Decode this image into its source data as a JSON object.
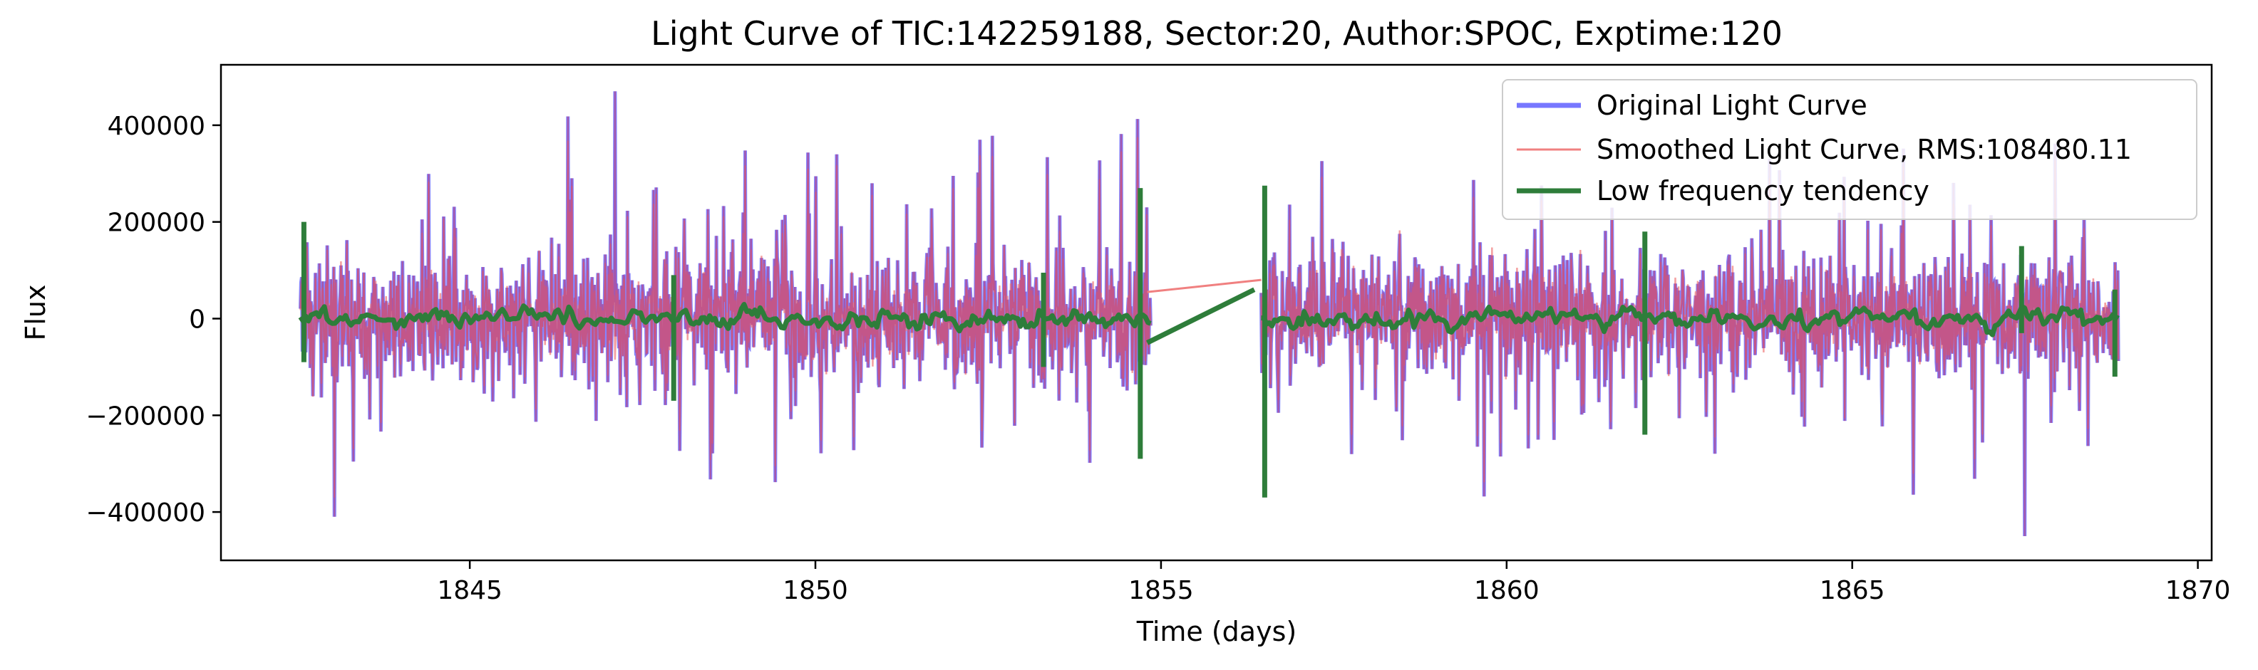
{
  "chart_data": {
    "type": "line",
    "title": "Light Curve of TIC:142259188, Sector:20, Author:SPOC, Exptime:120",
    "xlabel": "Time (days)",
    "ylabel": "Flux",
    "xlim": [
      1841.4,
      1870.2
    ],
    "ylim": [
      -500000,
      525000
    ],
    "xticks": [
      1845,
      1850,
      1855,
      1860,
      1865,
      1870
    ],
    "xtick_labels": [
      "1845",
      "1850",
      "1855",
      "1860",
      "1865",
      "1870"
    ],
    "yticks": [
      -400000,
      -200000,
      0,
      200000,
      400000
    ],
    "ytick_labels": [
      "−400000",
      "−200000",
      "0",
      "200000",
      "400000"
    ],
    "grid": false,
    "legend_position": "top-right",
    "segments": [
      [
        1842.55,
        1854.85
      ],
      [
        1856.45,
        1868.85
      ]
    ],
    "series": [
      {
        "name": "Original Light Curve",
        "color": "#7777ff",
        "amplitude_typical": 200000,
        "y_extremes": {
          "max": 470000,
          "min": -450000
        }
      },
      {
        "name": "Smoothed Light Curve, RMS:108480.11",
        "color": "#f08080",
        "rms": 108480.11,
        "gap_bridge": {
          "x": [
            1854.8,
            1856.45
          ],
          "y": [
            55000,
            80000
          ]
        }
      },
      {
        "name": "Low frequency tendency",
        "color": "#2e7d3a",
        "baseline_range": [
          -40000,
          40000
        ],
        "gap_bridge": {
          "x": [
            1854.8,
            1856.35
          ],
          "y": [
            -50000,
            60000
          ]
        },
        "spikes": [
          {
            "x": 1842.6,
            "ymin": -90000,
            "ymax": 200000
          },
          {
            "x": 1847.95,
            "ymin": -170000,
            "ymax": 90000
          },
          {
            "x": 1853.3,
            "ymin": -100000,
            "ymax": 95000
          },
          {
            "x": 1854.7,
            "ymin": -290000,
            "ymax": 270000
          },
          {
            "x": 1856.5,
            "ymin": -370000,
            "ymax": 275000
          },
          {
            "x": 1862.0,
            "ymin": -240000,
            "ymax": 180000
          },
          {
            "x": 1867.45,
            "ymin": -30000,
            "ymax": 150000
          },
          {
            "x": 1868.8,
            "ymin": -120000,
            "ymax": 60000
          }
        ]
      }
    ]
  }
}
